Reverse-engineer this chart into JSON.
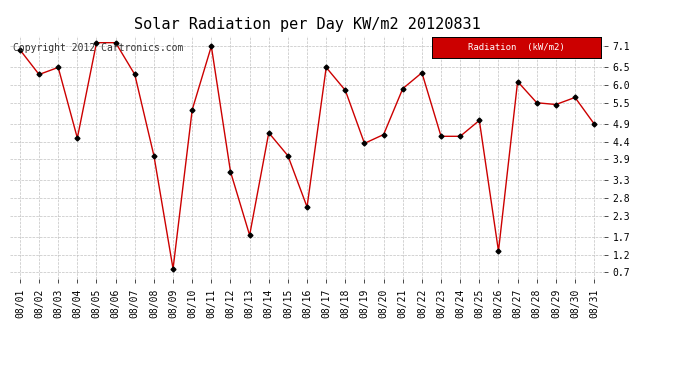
{
  "title": "Solar Radiation per Day KW/m2 20120831",
  "copyright_text": "Copyright 2012 Cartronics.com",
  "legend_label": "Radiation  (kW/m2)",
  "dates": [
    "08/01",
    "08/02",
    "08/03",
    "08/04",
    "08/05",
    "08/06",
    "08/07",
    "08/08",
    "08/09",
    "08/10",
    "08/11",
    "08/12",
    "08/13",
    "08/14",
    "08/15",
    "08/16",
    "08/17",
    "08/18",
    "08/19",
    "08/20",
    "08/21",
    "08/22",
    "08/23",
    "08/24",
    "08/25",
    "08/26",
    "08/27",
    "08/28",
    "08/29",
    "08/30",
    "08/31"
  ],
  "values": [
    7.0,
    6.3,
    6.5,
    4.5,
    7.2,
    7.2,
    6.3,
    4.0,
    0.8,
    5.3,
    7.1,
    3.55,
    1.75,
    4.65,
    4.0,
    2.55,
    6.5,
    5.85,
    4.35,
    4.6,
    5.9,
    6.35,
    4.55,
    4.55,
    5.0,
    1.3,
    6.1,
    5.5,
    5.45,
    5.65,
    4.9
  ],
  "yticks": [
    0.7,
    1.2,
    1.7,
    2.3,
    2.8,
    3.3,
    3.9,
    4.4,
    4.9,
    5.5,
    6.0,
    6.5,
    7.1
  ],
  "ylim": [
    0.5,
    7.4
  ],
  "line_color": "#cc0000",
  "marker_color": "#000000",
  "grid_color": "#bbbbbb",
  "bg_color": "#ffffff",
  "title_fontsize": 11,
  "copyright_fontsize": 7,
  "tick_fontsize": 7,
  "legend_bg": "#cc0000",
  "legend_text_color": "#ffffff"
}
